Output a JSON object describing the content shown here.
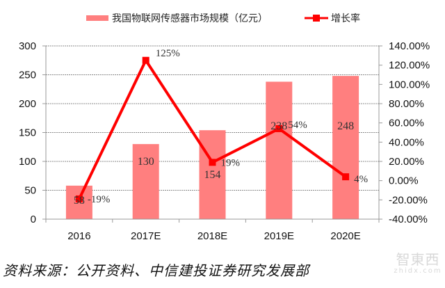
{
  "chart_data": {
    "type": "bar+line",
    "title": "",
    "categories": [
      "2016",
      "2017E",
      "2018E",
      "2019E",
      "2020E"
    ],
    "series": [
      {
        "name": "我国物联网传感器市场规模（亿元）",
        "type": "bar",
        "axis": "left",
        "color": "#ff7f7f",
        "values": [
          58,
          130,
          154,
          238,
          248
        ],
        "labels": [
          "58",
          "130",
          "154",
          "238",
          "248"
        ]
      },
      {
        "name": "增长率",
        "type": "line",
        "axis": "right",
        "color": "#ff0000",
        "values": [
          -19,
          125,
          19,
          54,
          4
        ],
        "labels": [
          "-19%",
          "125%",
          "19%",
          "54%",
          "4%"
        ]
      }
    ],
    "left_axis": {
      "ylim": [
        0,
        300
      ],
      "ticks": [
        "0",
        "50",
        "100",
        "150",
        "200",
        "250",
        "300"
      ]
    },
    "right_axis": {
      "ylim": [
        -40,
        140
      ],
      "ticks": [
        "-40.00%",
        "-20.00%",
        "0.00%",
        "20.00%",
        "40.00%",
        "60.00%",
        "80.00%",
        "100.00%",
        "120.00%",
        "140.00%"
      ]
    },
    "grid": "horizontal dashed",
    "legend_position": "top"
  },
  "legend": {
    "bar_label": "我国物联网传感器市场规模（亿元）",
    "line_label": "增长率"
  },
  "source": "资料来源：公开资料、中信建投证券研究发展部",
  "watermark": {
    "cn": "智東西",
    "en": "zhidx.com"
  }
}
